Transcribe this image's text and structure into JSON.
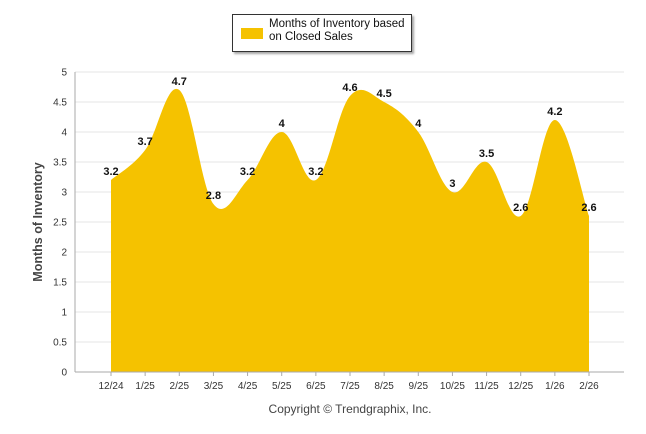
{
  "chart_data": {
    "type": "area",
    "categories": [
      "12/24",
      "1/25",
      "2/25",
      "3/25",
      "4/25",
      "5/25",
      "6/25",
      "7/25",
      "8/25",
      "9/25",
      "10/25",
      "11/25",
      "12/25",
      "1/26",
      "2/26"
    ],
    "series": [
      {
        "name": "Months of Inventory based on Closed Sales",
        "values": [
          3.2,
          3.7,
          4.7,
          2.8,
          3.2,
          4,
          3.2,
          4.6,
          4.5,
          4,
          3,
          3.5,
          2.6,
          4.2,
          2.6
        ]
      }
    ],
    "data_labels": [
      "3.2",
      "3.7",
      "4.7",
      "2.8",
      "3.2",
      "4",
      "3.2",
      "4.6",
      "4.5",
      "4",
      "3",
      "3.5",
      "2.6",
      "4.2",
      "2.6"
    ],
    "ylabel": "Months of Inventory",
    "xlabel": "",
    "ylim": [
      0,
      5
    ],
    "yticks": [
      "0",
      "0.5",
      "1",
      "1.5",
      "2",
      "2.5",
      "3",
      "3.5",
      "4",
      "4.5",
      "5"
    ],
    "grid": true,
    "legend_position": "top-center",
    "fill_color": "#F5C200",
    "credit": "Copyright © Trendgraphix, Inc."
  }
}
